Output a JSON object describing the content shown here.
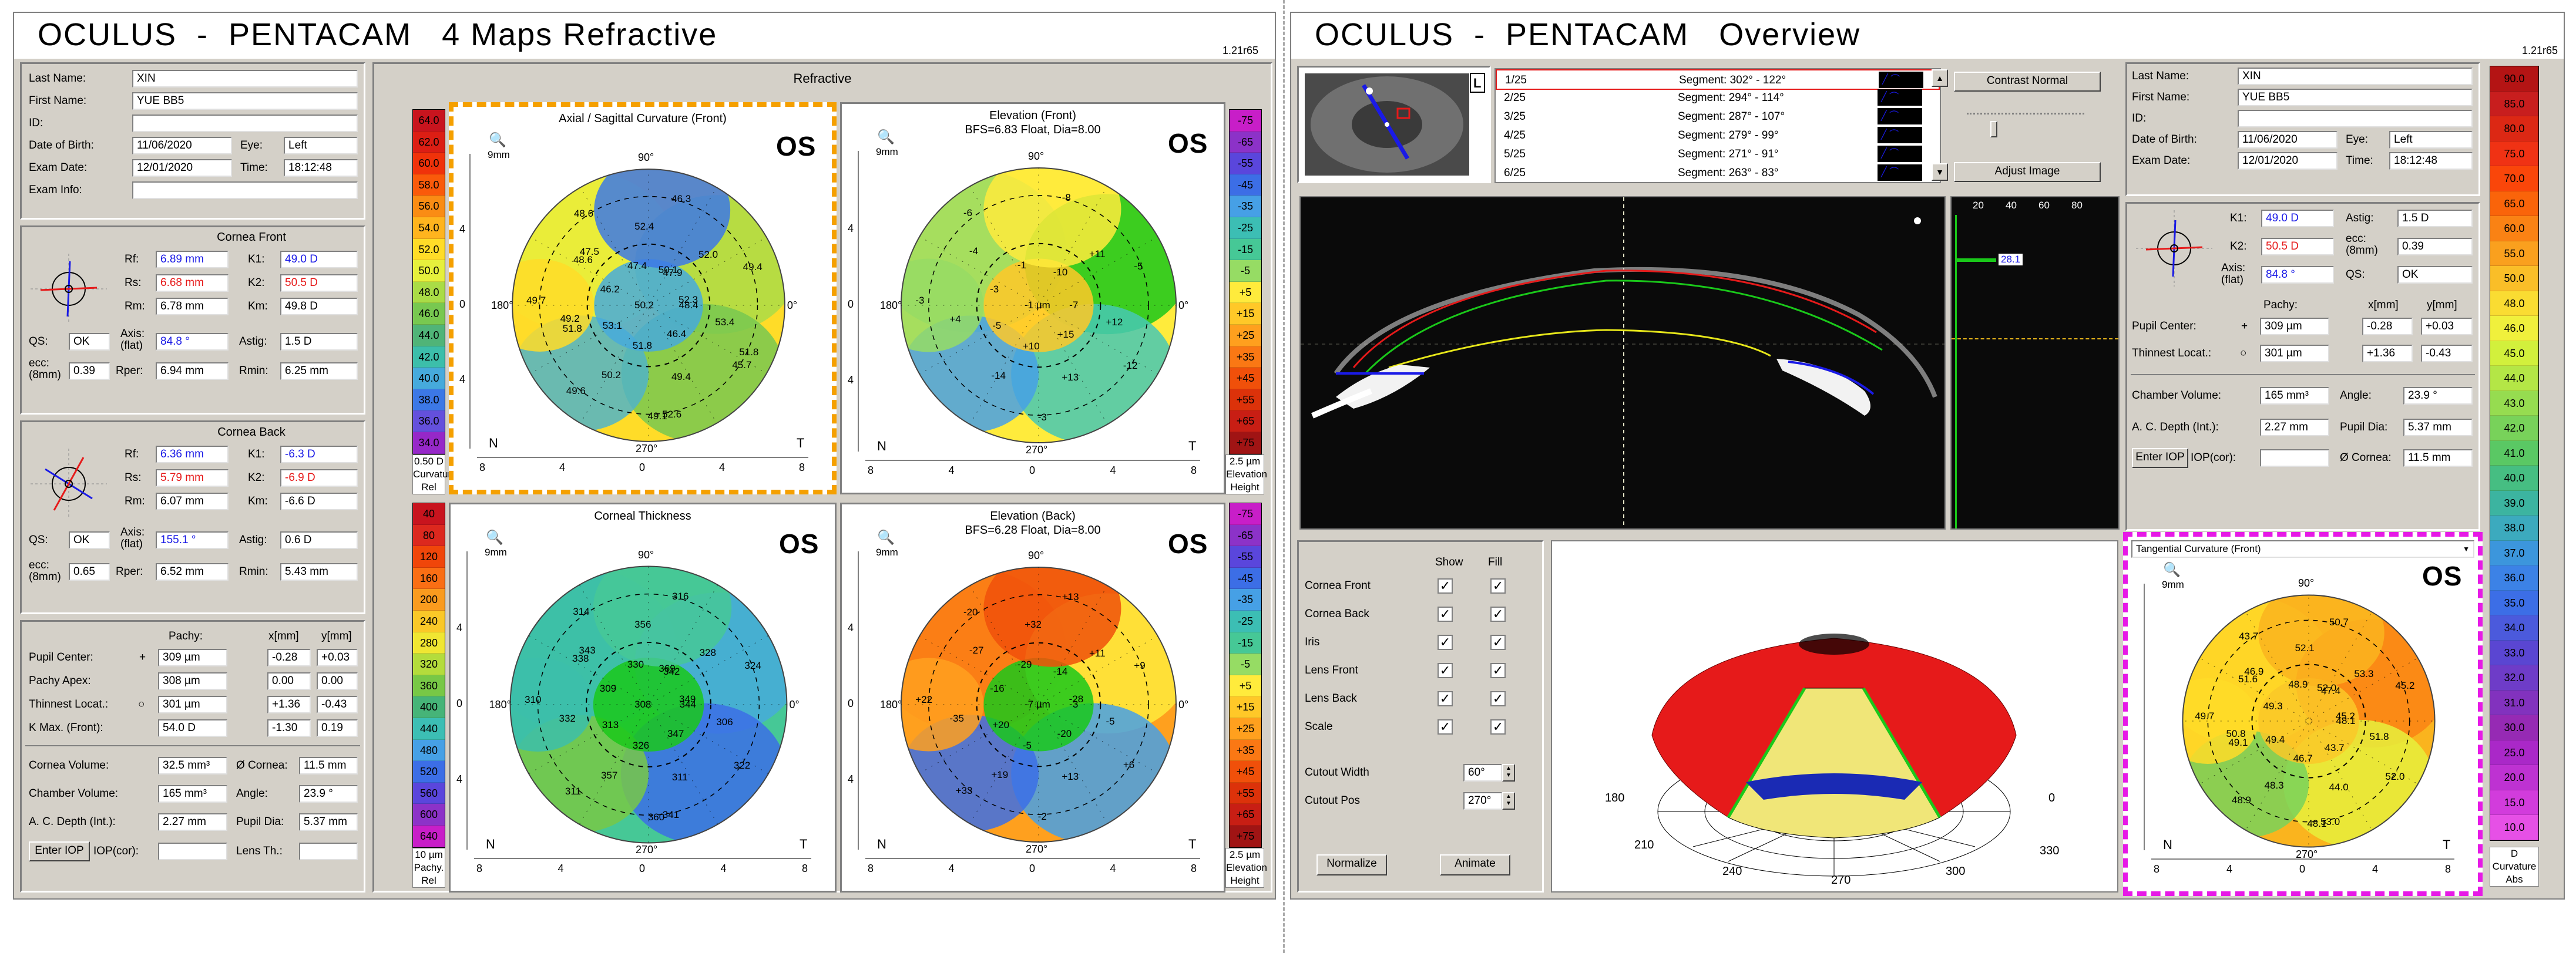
{
  "left": {
    "title": "OCULUS  -  PENTACAM   4 Maps Refractive",
    "version": "1.21r65",
    "patient": {
      "last_name_label": "Last Name:",
      "last_name": "XIN",
      "first_name_label": "First Name:",
      "first_name": "YUE BB5",
      "id_label": "ID:",
      "id": "",
      "dob_label": "Date of Birth:",
      "dob": "11/06/2020",
      "eye_label": "Eye:",
      "eye": "Left",
      "exam_label": "Exam Date:",
      "exam": "12/01/2020",
      "time_label": "Time:",
      "time": "18:12:48",
      "info_label": "Exam Info:",
      "info": ""
    },
    "front": {
      "title": "Cornea Front",
      "rf_label": "Rf:",
      "rf": "6.89 mm",
      "k1_label": "K1:",
      "k1": "49.0 D",
      "rs_label": "Rs:",
      "rs": "6.68 mm",
      "k2_label": "K2:",
      "k2": "50.5 D",
      "rm_label": "Rm:",
      "rm": "6.78 mm",
      "km_label": "Km:",
      "km": "49.8 D",
      "qs_label": "QS:",
      "qs": "OK",
      "axis_label": "Axis: (flat)",
      "axis": "84.8 °",
      "astig_label": "Astig:",
      "astig": "1.5 D",
      "ecc_label": "ecc: (8mm)",
      "ecc": "0.39",
      "rper_label": "Rper:",
      "rper": "6.94 mm",
      "rmin_label": "Rmin:",
      "rmin": "6.25 mm"
    },
    "back": {
      "title": "Cornea Back",
      "rf_label": "Rf:",
      "rf": "6.36 mm",
      "k1_label": "K1:",
      "k1": "-6.3 D",
      "rs_label": "Rs:",
      "rs": "5.79 mm",
      "k2_label": "K2:",
      "k2": "-6.9 D",
      "rm_label": "Rm:",
      "rm": "6.07 mm",
      "km_label": "Km:",
      "km": "-6.6 D",
      "qs_label": "QS:",
      "qs": "OK",
      "axis_label": "Axis: (flat)",
      "axis": "155.1 °",
      "astig_label": "Astig:",
      "astig": "0.6 D",
      "ecc_label": "ecc: (8mm)",
      "ecc": "0.65",
      "rper_label": "Rper:",
      "rper": "6.52 mm",
      "rmin_label": "Rmin:",
      "rmin": "5.43 mm"
    },
    "pachy": {
      "pachy_h": "Pachy:",
      "x_h": "x[mm]",
      "y_h": "y[mm]",
      "pupil_label": "Pupil Center:",
      "pupil": "309 µm",
      "pupil_x": "-0.28",
      "pupil_y": "+0.03",
      "apex_label": "Pachy Apex:",
      "apex": "308 µm",
      "apex_x": "0.00",
      "apex_y": "0.00",
      "thin_label": "Thinnest Locat.:",
      "thin": "301 µm",
      "thin_x": "+1.36",
      "thin_y": "-0.43",
      "kmax_label": "K Max. (Front):",
      "kmax": "54.0 D",
      "kmax_x": "-1.30",
      "kmax_y": "0.19"
    },
    "misc": {
      "cvol_label": "Cornea Volume:",
      "cvol": "32.5 mm³",
      "dia_label": "Ø Cornea:",
      "dia": "11.5 mm",
      "chvol_label": "Chamber Volume:",
      "chvol": "165 mm³",
      "angle_label": "Angle:",
      "angle": "23.9 °",
      "acd_label": "A. C. Depth (Int.):",
      "acd": "2.27 mm",
      "pupil_label": "Pupil Dia:",
      "pupil": "5.37 mm",
      "iop_btn": "Enter IOP",
      "iop_label": "IOP(cor):",
      "iop": "",
      "lens_label": "Lens Th.:",
      "lens": ""
    },
    "refractive_title": "Refractive",
    "scale_curv": {
      "values": [
        "64.0",
        "62.0",
        "60.0",
        "58.0",
        "56.0",
        "54.0",
        "52.0",
        "50.0",
        "48.0",
        "46.0",
        "44.0",
        "42.0",
        "40.0",
        "38.0",
        "36.0",
        "34.0"
      ],
      "colors": [
        "#c8141e",
        "#dc1e14",
        "#f0320a",
        "#fa5a0a",
        "#fa8c14",
        "#ffb41e",
        "#ffdc28",
        "#e6f03c",
        "#aadc46",
        "#78c850",
        "#50b478",
        "#3cbeaa",
        "#46aadc",
        "#3c78e6",
        "#6450dc",
        "#9628c8"
      ],
      "step": "0.50 D",
      "foot1": "Curvature",
      "foot2": "Rel"
    },
    "scale_pachy": {
      "values": [
        "40",
        "80",
        "120",
        "160",
        "200",
        "240",
        "280",
        "320",
        "360",
        "400",
        "440",
        "480",
        "520",
        "560",
        "600",
        "640"
      ],
      "colors": [
        "#c8141e",
        "#dc281e",
        "#f0460a",
        "#fa6e14",
        "#fa9b1e",
        "#fac828",
        "#f0e632",
        "#b4dc3c",
        "#78c846",
        "#46b478",
        "#3cbeb4",
        "#46a0e6",
        "#3c6ee6",
        "#5a46dc",
        "#8c32c8",
        "#c81ec8"
      ],
      "step": "10 µm",
      "foot1": "Pachy.",
      "foot2": "Rel"
    },
    "scale_elev": {
      "values": [
        "-75",
        "-65",
        "-55",
        "-45",
        "-35",
        "-25",
        "-15",
        "-5",
        "+5",
        "+15",
        "+25",
        "+35",
        "+45",
        "+55",
        "+65",
        "+75"
      ],
      "colors": [
        "#c81ec8",
        "#8c32c8",
        "#5a46dc",
        "#3c6ee6",
        "#46a0e6",
        "#3cbeb4",
        "#46c896",
        "#96dc64",
        "#ffeb3c",
        "#ffc828",
        "#ffa01e",
        "#fa7814",
        "#f0500a",
        "#dc320a",
        "#c81e14",
        "#a01414"
      ],
      "step": "2.5 µm",
      "foot1": "Elevation",
      "foot2": "Height"
    },
    "maps": [
      {
        "title": "Axial / Sagittal Curvature (Front)",
        "sub": "",
        "mag": "9mm",
        "os": "OS",
        "n": "N",
        "t": "T",
        "a0": "0°",
        "a90": "90°",
        "a180": "180°",
        "a270": "270°",
        "vals": [
          "48.4",
          "47.5",
          "49.1",
          "47.9",
          "49.2",
          "45.7",
          "47.4",
          "50.2",
          "49.4",
          "46.2",
          "49.4",
          "46.3",
          "53.1",
          "53.4",
          "48.6",
          "51.8",
          "52.0",
          "49.7",
          "46.4",
          "52.4",
          "49.6",
          "52.3",
          "48.6",
          "52.6",
          "50.1",
          "51.8",
          "51.8"
        ],
        "center": "50.2",
        "ticks": [
          "8",
          "4",
          "0",
          "4",
          "8"
        ],
        "yticks": [
          "4",
          "0",
          "4"
        ]
      },
      {
        "title": "Elevation (Front)",
        "sub": "BFS=6.83 Float, Dia=8.00",
        "mag": "9mm",
        "os": "OS",
        "n": "N",
        "t": "T",
        "a0": "0°",
        "a90": "90°",
        "a180": "180°",
        "a270": "270°",
        "vals": [
          "-7",
          "-4",
          "-3",
          "-10",
          "+4",
          "-12",
          "-1",
          "-14",
          "-5",
          "-3",
          "+13",
          "-8",
          "-5",
          "+12",
          "-6",
          "+10",
          "+11",
          "-3",
          "+15"
        ],
        "center": "-1 µm",
        "ticks": [
          "8",
          "4",
          "0",
          "4",
          "8"
        ],
        "yticks": [
          "4",
          "0",
          "4"
        ]
      },
      {
        "title": "Corneal Thickness",
        "sub": "",
        "mag": "9mm",
        "os": "OS",
        "n": "N",
        "t": "T",
        "a0": "0°",
        "a90": "90°",
        "a180": "180°",
        "a270": "270°",
        "vals": [
          "344",
          "343",
          "360",
          "342",
          "332",
          "322",
          "330",
          "357",
          "324",
          "309",
          "311",
          "316",
          "313",
          "306",
          "314",
          "326",
          "328",
          "310",
          "347",
          "356",
          "311",
          "349",
          "338",
          "341",
          "369"
        ],
        "center": "308",
        "ticks": [
          "8",
          "4",
          "0",
          "4",
          "8"
        ],
        "yticks": [
          "4",
          "0",
          "4"
        ]
      },
      {
        "title": "Elevation (Back)",
        "sub": "BFS=6.28 Float, Dia=8.00",
        "mag": "9mm",
        "os": "OS",
        "n": "N",
        "t": "T",
        "a0": "0°",
        "a90": "90°",
        "a180": "180°",
        "a270": "270°",
        "vals": [
          "-3",
          "-27",
          "-2",
          "-14",
          "-35",
          "+6",
          "-29",
          "+19",
          "+9",
          "-16",
          "+13",
          "+13",
          "+20",
          "-5",
          "-20",
          "-5",
          "+11",
          "+22",
          "-20",
          "+32",
          "+33",
          "-28"
        ],
        "center": "-7 µm",
        "ticks": [
          "8",
          "4",
          "0",
          "4",
          "8"
        ],
        "yticks": [
          "4",
          "0",
          "4"
        ]
      }
    ]
  },
  "right": {
    "title": "OCULUS  -  PENTACAM   Overview",
    "version": "1.21r65",
    "eye_marker": "L",
    "segments": [
      {
        "n": "1/25",
        "s": "Segment: 302° - 122°"
      },
      {
        "n": "2/25",
        "s": "Segment: 294° - 114°"
      },
      {
        "n": "3/25",
        "s": "Segment: 287° - 107°"
      },
      {
        "n": "4/25",
        "s": "Segment: 279° - 99°"
      },
      {
        "n": "5/25",
        "s": "Segment: 271° - 91°"
      },
      {
        "n": "6/25",
        "s": "Segment: 263° - 83°"
      }
    ],
    "contrast_btn": "Contrast Normal",
    "adjust_btn": "Adjust Image",
    "density_ticks": [
      "20",
      "40",
      "60",
      "80"
    ],
    "density_value": "28.1",
    "display": {
      "show_h": "Show",
      "fill_h": "Fill",
      "rows": [
        "Cornea Front",
        "Cornea Back",
        "Iris",
        "Lens Front",
        "Lens Back",
        "Scale"
      ],
      "cutout_w_label": "Cutout Width",
      "cutout_w": "60°",
      "cutout_p_label": "Cutout Pos",
      "cutout_p": "270°",
      "normalize_btn": "Normalize",
      "animate_btn": "Animate"
    },
    "model_angles": [
      "180",
      "0",
      "210",
      "330",
      "240",
      "300",
      "270"
    ],
    "patient": {
      "last_name": "XIN",
      "first_name": "YUE BB5",
      "id": "",
      "dob": "11/06/2020",
      "eye": "Left",
      "exam": "12/01/2020",
      "time": "18:12:48"
    },
    "kvals": {
      "k1": "49.0 D",
      "astig": "1.5 D",
      "k2": "50.5 D",
      "ecc": "0.39",
      "axis": "84.8 °",
      "qs": "OK",
      "axis_label": "Axis: (flat)",
      "ecc_label": "ecc: (8mm)"
    },
    "pachy": {
      "pachy_h": "Pachy:",
      "x_h": "x[mm]",
      "y_h": "y[mm]",
      "pupil": "309 µm",
      "pupil_x": "-0.28",
      "pupil_y": "+0.03",
      "thin": "301 µm",
      "thin_x": "+1.36",
      "thin_y": "-0.43"
    },
    "misc": {
      "chvol": "165 mm³",
      "angle": "23.9 °",
      "acd": "2.27 mm",
      "pupil": "5.37 mm",
      "iop_btn": "Enter IOP",
      "iop_label": "IOP(cor):",
      "iop": "",
      "dia_label": "Ø Cornea:",
      "dia": "11.5 mm"
    },
    "tangential": {
      "select": "Tangential Curvature (Front)",
      "os": "OS",
      "mag": "9mm",
      "n": "N",
      "t": "T",
      "a90": "90°",
      "a270": "270°",
      "vals": [
        "48.1",
        "46.9",
        "48.1",
        "47.4",
        "50.8",
        "52.0",
        "48.9",
        "48.3",
        "45.2",
        "49.3",
        "44.0",
        "50.7",
        "49.4",
        "51.8",
        "43.7",
        "46.7",
        "53.3",
        "49.7",
        "43.7",
        "52.1",
        "48.9",
        "45.2",
        "51.6",
        "53.0",
        "52.0",
        "49.1"
      ],
      "ticks": [
        "8",
        "4",
        "0",
        "4",
        "8"
      ]
    },
    "scale_abs": {
      "values": [
        "90.0",
        "85.0",
        "80.0",
        "75.0",
        "70.0",
        "65.0",
        "60.0",
        "55.0",
        "50.0",
        "48.0",
        "46.0",
        "45.0",
        "44.0",
        "43.0",
        "42.0",
        "41.0",
        "40.0",
        "39.0",
        "38.0",
        "37.0",
        "36.0",
        "35.0",
        "34.0",
        "33.0",
        "32.0",
        "31.0",
        "30.0",
        "25.0",
        "20.0",
        "15.0",
        "10.0"
      ],
      "colors": [
        "#b41414",
        "#c81e1e",
        "#dc2814",
        "#f03214",
        "#fa460a",
        "#fa640a",
        "#fa8214",
        "#faa01e",
        "#fabe28",
        "#fadc32",
        "#f0f03c",
        "#d2f03c",
        "#b4e646",
        "#96dc50",
        "#78d25a",
        "#5ac864",
        "#46be82",
        "#3cb4a0",
        "#3caabe",
        "#3c96dc",
        "#3c82e6",
        "#3c6ee6",
        "#4b5adc",
        "#5a46d2",
        "#6e3cc8",
        "#8232be",
        "#962ab4",
        "#aa28c8",
        "#be32d2",
        "#d23cdc",
        "#e650e6"
      ],
      "d": "D",
      "foot1": "Curvature",
      "foot2": "Abs"
    }
  }
}
